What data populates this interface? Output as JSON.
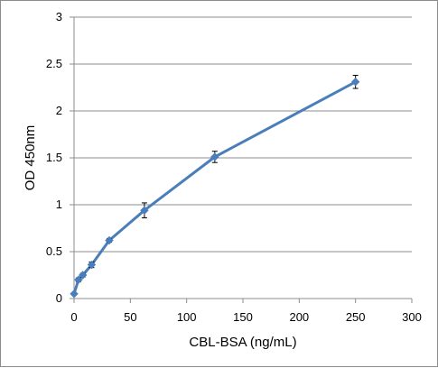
{
  "chart_data": {
    "type": "line",
    "title": "",
    "xlabel": "CBL-BSA (ng/mL)",
    "ylabel": "OD 450nm",
    "xlim": [
      0,
      300
    ],
    "ylim": [
      0,
      3
    ],
    "xticks": [
      "0",
      "50",
      "100",
      "150",
      "200",
      "250",
      "300"
    ],
    "yticks": [
      "0",
      "0.5",
      "1",
      "1.5",
      "2",
      "2.5",
      "3"
    ],
    "grid": "horizontal",
    "legend": "none",
    "series": [
      {
        "color": "#4a7ebb",
        "x": [
          0,
          3.9,
          7.8,
          15.6,
          31.25,
          62.5,
          125,
          250
        ],
        "y": [
          0.05,
          0.2,
          0.25,
          0.36,
          0.62,
          0.94,
          1.51,
          2.31
        ],
        "err": [
          0,
          0.02,
          0.02,
          0.03,
          0.02,
          0.08,
          0.06,
          0.07
        ]
      }
    ]
  }
}
